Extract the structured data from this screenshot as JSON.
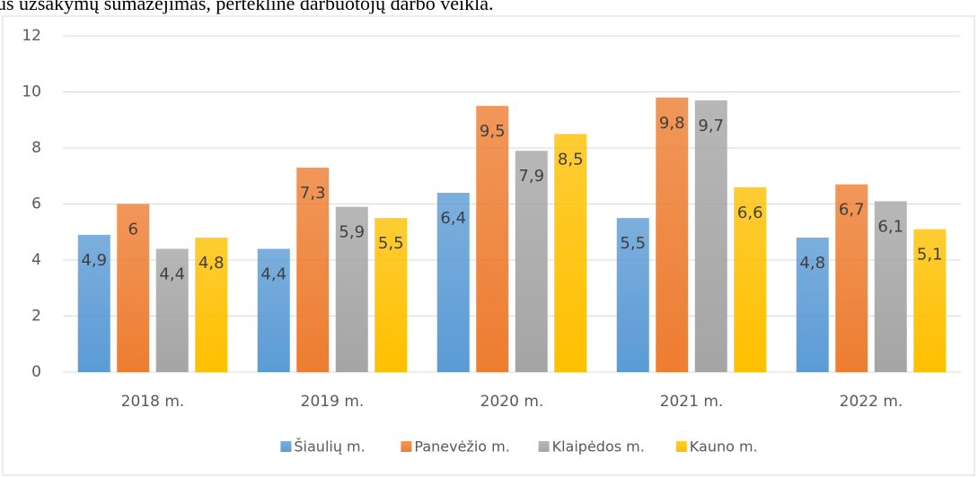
{
  "document_text": "us užsakymų sumažėjimas, perteklinė darbuotojų darbo veikla.",
  "chart_data": {
    "type": "bar",
    "categories": [
      "2018 m.",
      "2019 m.",
      "2020 m.",
      "2021 m.",
      "2022 m."
    ],
    "series": [
      {
        "name": "Šiaulių m.",
        "color": "#5b9bd5",
        "values": [
          4.9,
          4.4,
          6.4,
          5.5,
          4.8
        ],
        "value_labels": [
          "4,9",
          "4,4",
          "6,4",
          "5,5",
          "4,8"
        ]
      },
      {
        "name": "Panevėžio m.",
        "color": "#ed7d31",
        "values": [
          6,
          7.3,
          9.5,
          9.8,
          6.7
        ],
        "value_labels": [
          "6",
          "7,3",
          "9,5",
          "9,8",
          "6,7"
        ]
      },
      {
        "name": "Klaipėdos m.",
        "color": "#a5a5a5",
        "values": [
          4.4,
          5.9,
          7.9,
          9.7,
          6.1
        ],
        "value_labels": [
          "4,4",
          "5,9",
          "7,9",
          "9,7",
          "6,1"
        ]
      },
      {
        "name": "Kauno m.",
        "color": "#ffc000",
        "values": [
          4.8,
          5.5,
          8.5,
          6.6,
          5.1
        ],
        "value_labels": [
          "4,8",
          "5,5",
          "8,5",
          "6,6",
          "5,1"
        ]
      }
    ],
    "ylim": [
      0,
      12
    ],
    "yticks": [
      0,
      2,
      4,
      6,
      8,
      10,
      12
    ],
    "grid": true,
    "legend": "bottom"
  }
}
